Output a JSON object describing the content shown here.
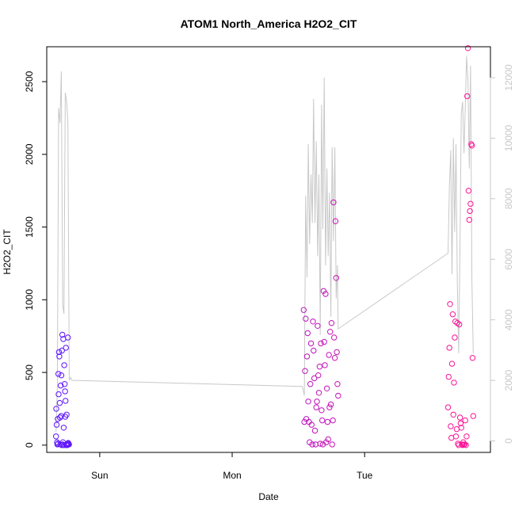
{
  "chart_data": {
    "type": "scatter",
    "title": "ATOM1 North_America H2O2_CIT",
    "xlabel": "Date",
    "ylabel": "H2O2_CIT",
    "x_ticks": [
      "Sun",
      "Mon",
      "Tue"
    ],
    "x_tick_days": [
      1,
      2,
      3
    ],
    "xlim_days": [
      0.6,
      3.95
    ],
    "ylim": [
      -50,
      2740
    ],
    "y_ticks": [
      0,
      500,
      1000,
      1500,
      2000,
      2500
    ],
    "y2_ticks": [
      0,
      2000,
      4000,
      6000,
      8000,
      10000,
      12000
    ],
    "y2lim": [
      -380,
      13020
    ],
    "colors": {
      "line": "#c8c8c8",
      "right_axis": "#c8c8c8",
      "point_start": "#5a14ff",
      "point_end": "#ff1493"
    },
    "series": [
      {
        "style": "points",
        "x_days": [
          0.67,
          0.672,
          0.675,
          0.678,
          0.68,
          0.683,
          0.685,
          0.688,
          0.69,
          0.692,
          0.695,
          0.698,
          0.7,
          0.703,
          0.705,
          0.708,
          0.71,
          0.713,
          0.715,
          0.718,
          0.72,
          0.722,
          0.725,
          0.728,
          0.73,
          0.732,
          0.735,
          0.738,
          0.74,
          0.742,
          0.745,
          0.748,
          0.75,
          0.752,
          0.755,
          0.758,
          0.76,
          0.762,
          0.765,
          0.768,
          2.54,
          2.545,
          2.55,
          2.555,
          2.56,
          2.565,
          2.57,
          2.575,
          2.58,
          2.585,
          2.59,
          2.595,
          2.6,
          2.605,
          2.61,
          2.615,
          2.62,
          2.625,
          2.63,
          2.635,
          2.64,
          2.645,
          2.65,
          2.655,
          2.66,
          2.665,
          2.67,
          2.675,
          2.68,
          2.685,
          2.69,
          2.695,
          2.7,
          2.705,
          2.71,
          2.715,
          2.72,
          2.725,
          2.73,
          2.735,
          2.74,
          2.745,
          2.75,
          2.755,
          2.76,
          2.765,
          2.77,
          2.775,
          2.78,
          2.785,
          2.79,
          2.795,
          2.8,
          3.63,
          3.635,
          3.64,
          3.645,
          3.65,
          3.655,
          3.66,
          3.665,
          3.67,
          3.675,
          3.68,
          3.685,
          3.69,
          3.695,
          3.7,
          3.705,
          3.71,
          3.715,
          3.72,
          3.725,
          3.73,
          3.735,
          3.74,
          3.745,
          3.75,
          3.755,
          3.76,
          3.765,
          3.77,
          3.775,
          3.78,
          3.785,
          3.79,
          3.795,
          3.8,
          3.805,
          3.81,
          3.815,
          3.82
        ],
        "y": [
          60,
          250,
          140,
          20,
          5,
          180,
          10,
          490,
          350,
          640,
          610,
          290,
          190,
          5,
          410,
          200,
          480,
          0,
          650,
          760,
          5,
          20,
          730,
          120,
          0,
          550,
          420,
          370,
          195,
          305,
          670,
          0,
          210,
          0,
          0,
          5,
          740,
          15,
          10,
          5,
          930,
          160,
          510,
          870,
          180,
          610,
          770,
          300,
          160,
          20,
          420,
          700,
          140,
          5,
          850,
          650,
          460,
          100,
          5,
          260,
          300,
          820,
          480,
          360,
          540,
          10,
          700,
          240,
          170,
          5,
          1060,
          710,
          550,
          1040,
          20,
          390,
          160,
          40,
          620,
          260,
          780,
          280,
          840,
          5,
          170,
          1670,
          740,
          600,
          1540,
          1150,
          640,
          420,
          340,
          260,
          470,
          670,
          970,
          130,
          50,
          560,
          900,
          210,
          430,
          740,
          850,
          60,
          110,
          840,
          10,
          0,
          830,
          190,
          150,
          120,
          5,
          0,
          20,
          3,
          5,
          170,
          0,
          60,
          2400,
          2730,
          1750,
          1550,
          1610,
          1660,
          2070,
          2060,
          600,
          200
        ]
      },
      {
        "style": "line",
        "x_days": [
          0.67,
          0.68,
          0.69,
          0.7,
          0.71,
          0.72,
          0.73,
          0.74,
          0.75,
          0.76,
          0.77,
          0.78,
          0.79,
          0.8,
          2.53,
          2.545,
          2.555,
          2.565,
          2.575,
          2.585,
          2.595,
          2.605,
          2.615,
          2.625,
          2.635,
          2.645,
          2.655,
          2.665,
          2.675,
          2.685,
          2.695,
          2.705,
          2.715,
          2.725,
          2.735,
          2.745,
          2.755,
          2.765,
          2.775,
          2.785,
          2.795,
          2.8,
          3.63,
          3.64,
          3.65,
          3.66,
          3.67,
          3.68,
          3.69,
          3.7,
          3.71,
          3.72,
          3.73,
          3.74,
          3.75,
          3.76,
          3.77,
          3.78,
          3.79,
          3.8,
          3.81,
          3.82
        ],
        "y2": [
          300,
          1800,
          11000,
          10500,
          12200,
          4500,
          4200,
          11500,
          11200,
          10500,
          2000,
          2100,
          2000,
          2000,
          1800,
          1500,
          8100,
          5400,
          9800,
          6500,
          8800,
          7200,
          11300,
          7200,
          9900,
          6100,
          8800,
          3500,
          11100,
          7000,
          12000,
          5800,
          9000,
          6100,
          8200,
          4100,
          9700,
          6600,
          9700,
          4700,
          5800,
          3700,
          6200,
          8400,
          9600,
          5500,
          10000,
          6900,
          9800,
          5200,
          2900,
          6500,
          10800,
          11200,
          9500,
          11000,
          12700,
          11900,
          9000,
          12400,
          5300,
          2900
        ]
      }
    ]
  }
}
